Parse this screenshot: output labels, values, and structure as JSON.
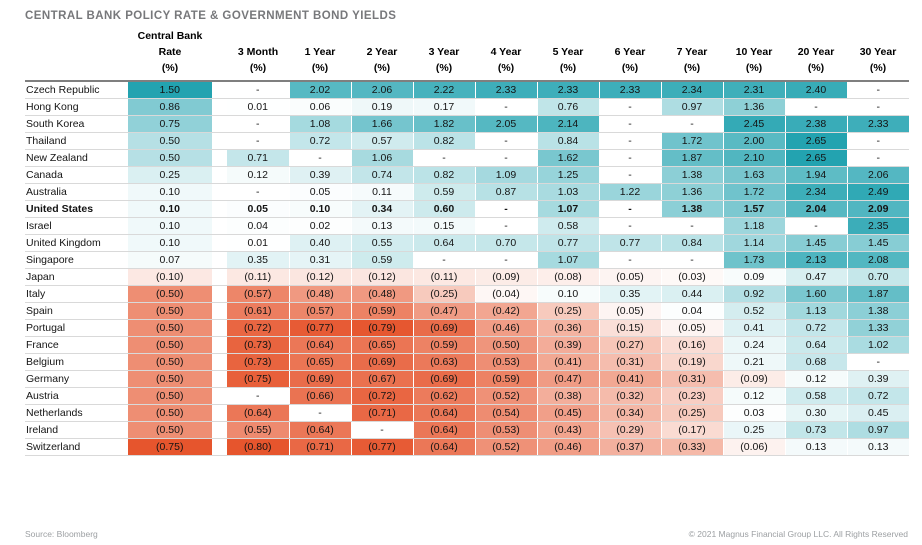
{
  "footer": {
    "source": "Source: Bloomberg",
    "copyright": "© 2021 Magnus Financial Group LLC. All Rights Reserved"
  },
  "chart_data": {
    "type": "heatmap",
    "title": "CENTRAL BANK POLICY RATE & GOVERNMENT BOND YIELDS",
    "columns": [
      "Central Bank\nRate\n(%)",
      "3 Month\n(%)",
      "1 Year\n(%)",
      "2 Year\n(%)",
      "3 Year\n(%)",
      "4 Year\n(%)",
      "5 Year\n(%)",
      "6 Year\n(%)",
      "7 Year\n(%)",
      "10 Year\n(%)",
      "20 Year\n(%)",
      "30 Year\n(%)"
    ],
    "missing_marker": "-",
    "negative_format": "parentheses",
    "color_scale": {
      "neutral_color": "#ffffff",
      "positive_color": "#23a3b0",
      "negative_color": "#e6552d",
      "bond_positive_max": 2.65,
      "bond_negative_min": -0.8,
      "cb_positive_max": 1.5,
      "cb_negative_min": -0.75
    },
    "rows": [
      {
        "label": "Czech Republic",
        "values": [
          1.5,
          null,
          2.02,
          2.06,
          2.22,
          2.33,
          2.33,
          2.33,
          2.34,
          2.31,
          2.4,
          null
        ]
      },
      {
        "label": "Hong Kong",
        "values": [
          0.86,
          0.01,
          0.06,
          0.19,
          0.17,
          null,
          0.76,
          null,
          0.97,
          1.36,
          null,
          null
        ]
      },
      {
        "label": "South Korea",
        "values": [
          0.75,
          null,
          1.08,
          1.66,
          1.82,
          2.05,
          2.14,
          null,
          null,
          2.45,
          2.38,
          2.33
        ]
      },
      {
        "label": "Thailand",
        "values": [
          0.5,
          null,
          0.72,
          0.57,
          0.82,
          null,
          0.84,
          null,
          1.72,
          2.0,
          2.65,
          null
        ]
      },
      {
        "label": "New Zealand",
        "values": [
          0.5,
          0.71,
          null,
          1.06,
          null,
          null,
          1.62,
          null,
          1.87,
          2.1,
          2.65,
          null
        ]
      },
      {
        "label": "Canada",
        "values": [
          0.25,
          0.12,
          0.39,
          0.74,
          0.82,
          1.09,
          1.25,
          null,
          1.38,
          1.63,
          1.94,
          2.06
        ]
      },
      {
        "label": "Australia",
        "values": [
          0.1,
          null,
          0.05,
          0.11,
          0.59,
          0.87,
          1.03,
          1.22,
          1.36,
          1.72,
          2.34,
          2.49
        ]
      },
      {
        "label": "United States",
        "bold": true,
        "values": [
          0.1,
          0.05,
          0.1,
          0.34,
          0.6,
          null,
          1.07,
          null,
          1.38,
          1.57,
          2.04,
          2.09
        ]
      },
      {
        "label": "Israel",
        "values": [
          0.1,
          0.04,
          0.02,
          0.13,
          0.15,
          null,
          0.58,
          null,
          null,
          1.18,
          null,
          2.35
        ]
      },
      {
        "label": "United Kingdom",
        "values": [
          0.1,
          0.01,
          0.4,
          0.55,
          0.64,
          0.7,
          0.77,
          0.77,
          0.84,
          1.14,
          1.45,
          1.45
        ]
      },
      {
        "label": "Singapore",
        "values": [
          0.07,
          0.35,
          0.31,
          0.59,
          null,
          null,
          1.07,
          null,
          null,
          1.73,
          2.13,
          2.08
        ]
      },
      {
        "label": "Japan",
        "values": [
          -0.1,
          -0.11,
          -0.12,
          -0.12,
          -0.11,
          -0.09,
          -0.08,
          -0.05,
          -0.03,
          0.09,
          0.47,
          0.7
        ]
      },
      {
        "label": "Italy",
        "values": [
          -0.5,
          -0.57,
          -0.48,
          -0.48,
          -0.25,
          -0.04,
          0.1,
          0.35,
          0.44,
          0.92,
          1.6,
          1.87
        ]
      },
      {
        "label": "Spain",
        "values": [
          -0.5,
          -0.61,
          -0.57,
          -0.59,
          -0.47,
          -0.42,
          -0.25,
          -0.05,
          0.04,
          0.52,
          1.13,
          1.38
        ]
      },
      {
        "label": "Portugal",
        "values": [
          -0.5,
          -0.72,
          -0.77,
          -0.79,
          -0.69,
          -0.46,
          -0.36,
          -0.15,
          -0.05,
          0.41,
          0.72,
          1.33
        ]
      },
      {
        "label": "France",
        "values": [
          -0.5,
          -0.73,
          -0.64,
          -0.65,
          -0.59,
          -0.5,
          -0.39,
          -0.27,
          -0.16,
          0.24,
          0.64,
          1.02
        ]
      },
      {
        "label": "Belgium",
        "values": [
          -0.5,
          -0.73,
          -0.65,
          -0.69,
          -0.63,
          -0.53,
          -0.41,
          -0.31,
          -0.19,
          0.21,
          0.68,
          null
        ]
      },
      {
        "label": "Germany",
        "values": [
          -0.5,
          -0.75,
          -0.69,
          -0.67,
          -0.69,
          -0.59,
          -0.47,
          -0.41,
          -0.31,
          -0.09,
          0.12,
          0.39
        ]
      },
      {
        "label": "Austria",
        "values": [
          -0.5,
          null,
          -0.66,
          -0.72,
          -0.62,
          -0.52,
          -0.38,
          -0.32,
          -0.23,
          0.12,
          0.58,
          0.72
        ]
      },
      {
        "label": "Netherlands",
        "values": [
          -0.5,
          -0.64,
          null,
          -0.71,
          -0.64,
          -0.54,
          -0.45,
          -0.34,
          -0.25,
          0.03,
          0.3,
          0.45
        ]
      },
      {
        "label": "Ireland",
        "values": [
          -0.5,
          -0.55,
          -0.64,
          null,
          -0.64,
          -0.53,
          -0.43,
          -0.29,
          -0.17,
          0.25,
          0.73,
          0.97
        ]
      },
      {
        "label": "Switzerland",
        "values": [
          -0.75,
          -0.8,
          -0.71,
          -0.77,
          -0.64,
          -0.52,
          -0.46,
          -0.37,
          -0.33,
          -0.06,
          0.13,
          0.13
        ]
      }
    ]
  }
}
